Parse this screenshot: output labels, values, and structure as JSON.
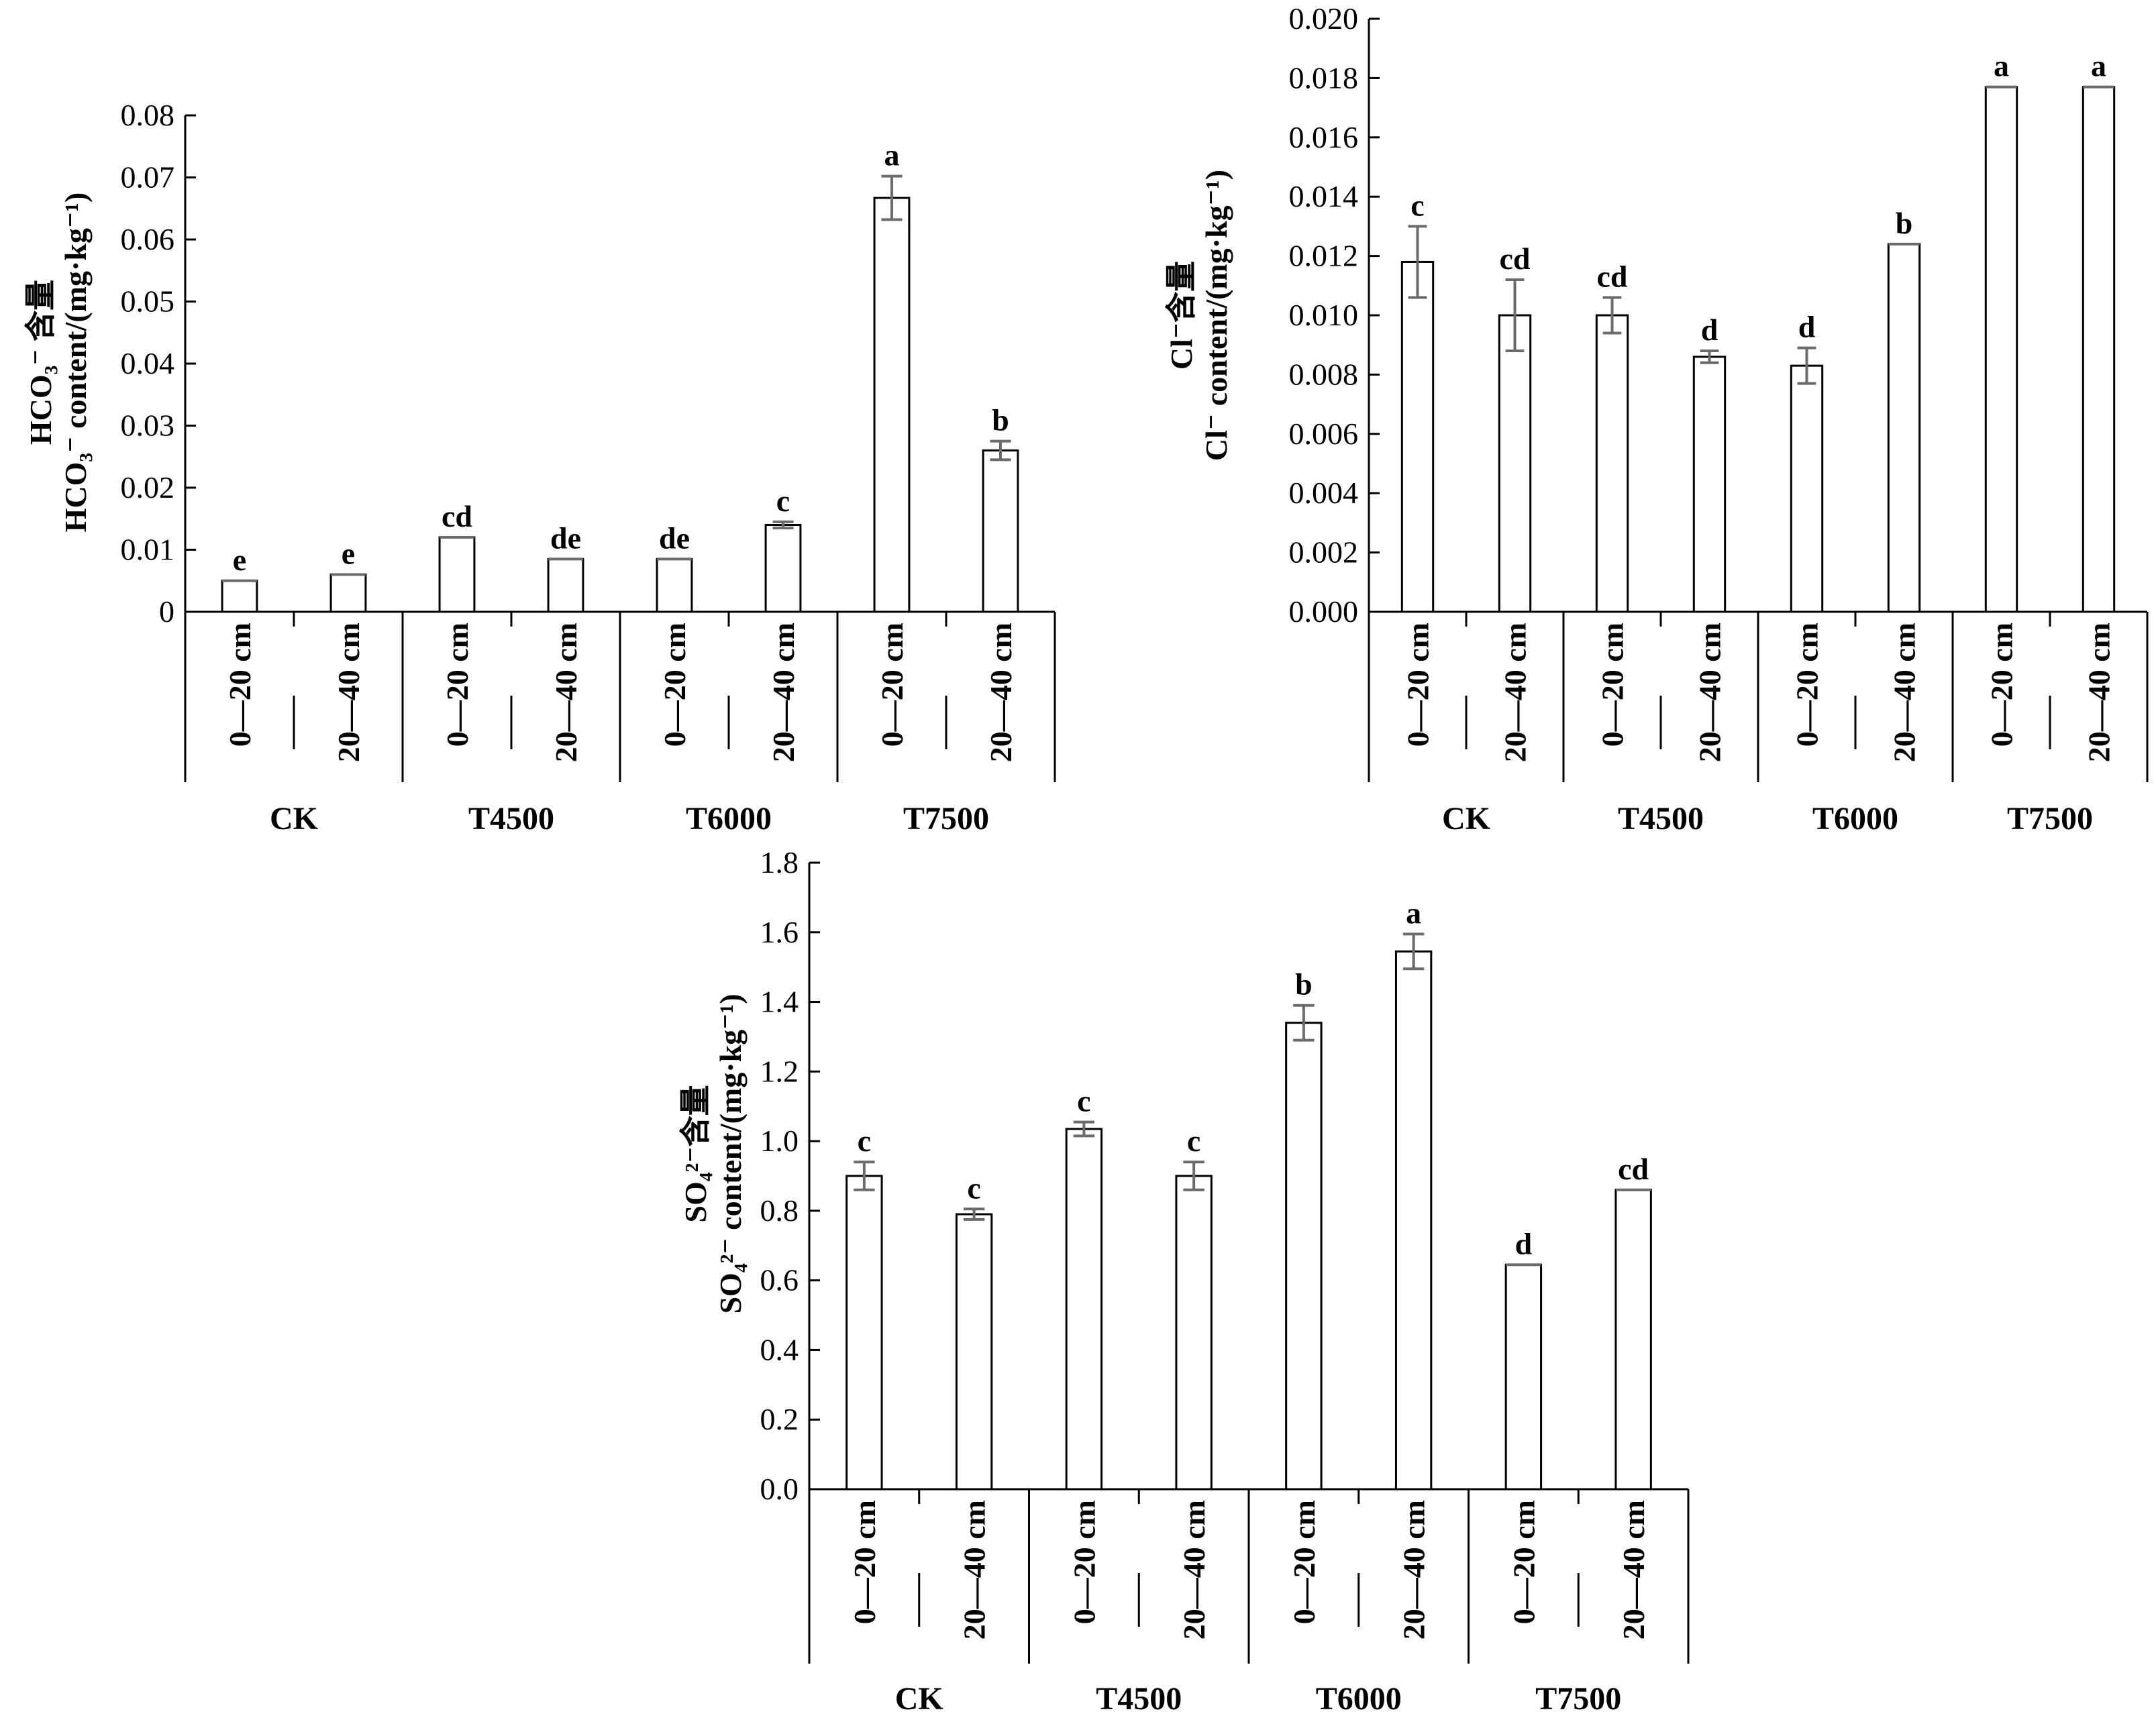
{
  "chart_data": [
    {
      "type": "bar",
      "ylabel_cn": "HCO₃⁻ 含量",
      "ylabel_en": "HCO₃⁻ content/(mg·kg⁻¹)",
      "ylim": [
        0,
        0.08
      ],
      "yticks": [
        "0",
        "0.01",
        "0.02",
        "0.03",
        "0.04",
        "0.05",
        "0.06",
        "0.07",
        "0.08"
      ],
      "categories": [
        "0—20 cm",
        "20—40 cm",
        "0—20 cm",
        "20—40 cm",
        "0—20 cm",
        "20—40 cm",
        "0—20 cm",
        "20—40 cm"
      ],
      "groups": [
        "CK",
        "T4500",
        "T6000",
        "T7500"
      ],
      "values": [
        0.005,
        0.006,
        0.012,
        0.0085,
        0.0085,
        0.014,
        0.0667,
        0.026
      ],
      "errors": [
        0,
        0,
        0,
        0,
        0,
        0.0005,
        0.0035,
        0.0015
      ],
      "significance": [
        "e",
        "e",
        "cd",
        "de",
        "de",
        "c",
        "a",
        "b"
      ],
      "grid": false
    },
    {
      "type": "bar",
      "ylabel_cn": "Cl⁻含量",
      "ylabel_en": "Cl⁻ content/(mg·kg⁻¹)",
      "ylim": [
        0,
        0.02
      ],
      "yticks": [
        "0.000",
        "0.002",
        "0.004",
        "0.006",
        "0.008",
        "0.010",
        "0.012",
        "0.014",
        "0.016",
        "0.018",
        "0.020"
      ],
      "categories": [
        "0—20 cm",
        "20—40 cm",
        "0—20 cm",
        "20—40 cm",
        "0—20 cm",
        "20—40 cm",
        "0—20 cm",
        "20—40 cm"
      ],
      "groups": [
        "CK",
        "T4500",
        "T6000",
        "T7500"
      ],
      "values": [
        0.0118,
        0.01,
        0.01,
        0.0086,
        0.0083,
        0.0124,
        0.0177,
        0.0177
      ],
      "errors": [
        0.0012,
        0.0012,
        0.0006,
        0.0002,
        0.0006,
        0,
        0,
        0
      ],
      "significance": [
        "c",
        "cd",
        "cd",
        "d",
        "d",
        "b",
        "a",
        "a"
      ],
      "grid": false
    },
    {
      "type": "bar",
      "ylabel_cn": "SO₄²⁻含量",
      "ylabel_en": "SO₄²⁻ content/(mg·kg⁻¹)",
      "ylim": [
        0,
        1.8
      ],
      "yticks": [
        "0.0",
        "0.2",
        "0.4",
        "0.6",
        "0.8",
        "1.0",
        "1.2",
        "1.4",
        "1.6",
        "1.8"
      ],
      "categories": [
        "0—20 cm",
        "20—40 cm",
        "0—20 cm",
        "20—40 cm",
        "0—20 cm",
        "20—40 cm",
        "0—20 cm",
        "20—40 cm"
      ],
      "groups": [
        "CK",
        "T4500",
        "T6000",
        "T7500"
      ],
      "values": [
        0.9,
        0.79,
        1.035,
        0.9,
        1.34,
        1.545,
        0.645,
        0.86
      ],
      "errors": [
        0.04,
        0.015,
        0.02,
        0.04,
        0.05,
        0.05,
        0,
        0
      ],
      "significance": [
        "c",
        "c",
        "c",
        "c",
        "b",
        "a",
        "d",
        "cd"
      ],
      "grid": false
    }
  ]
}
